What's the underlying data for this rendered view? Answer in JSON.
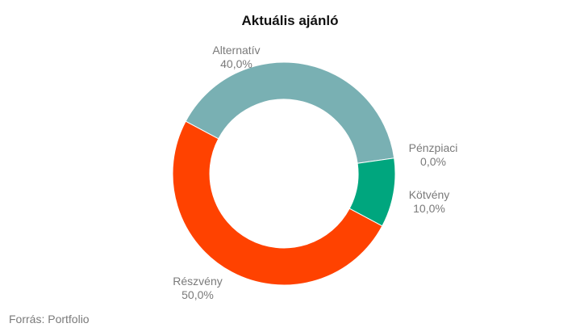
{
  "title": "Aktuális ajánló",
  "source": "Forrás: Portfolio",
  "chart_data": {
    "type": "pie",
    "donut": true,
    "title": "Aktuális ajánló",
    "slices": [
      {
        "label": "Alternatív",
        "value": 40.0,
        "value_label": "40,0%",
        "color": "#79b0b3"
      },
      {
        "label": "Pénzpiaci",
        "value": 0.0,
        "value_label": "0,0%",
        "color": "#2b6ea4"
      },
      {
        "label": "Kötvény",
        "value": 10.0,
        "value_label": "10,0%",
        "color": "#00a67e"
      },
      {
        "label": "Részvény",
        "value": 50.0,
        "value_label": "50,0%",
        "color": "#ff4200"
      }
    ]
  }
}
